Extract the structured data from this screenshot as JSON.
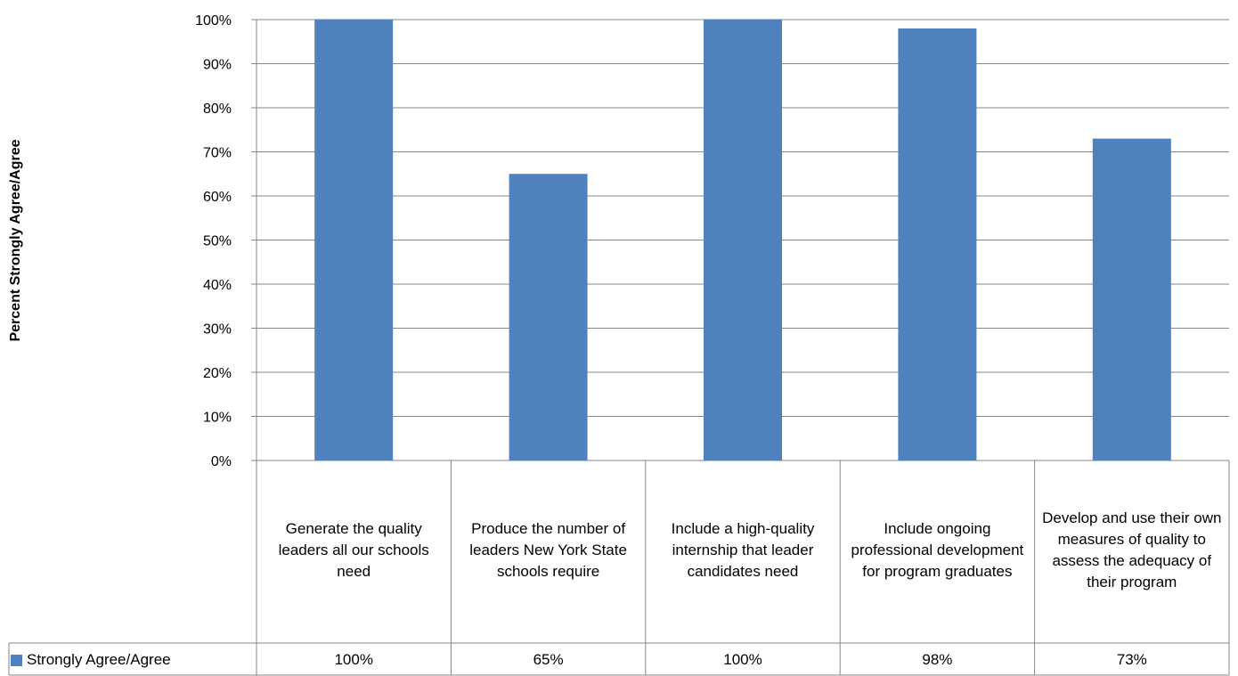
{
  "chart_data": {
    "type": "bar",
    "ylabel": "Percent Strongly Agree/Agree",
    "ylim": [
      0,
      100
    ],
    "y_ticks": [
      "0%",
      "10%",
      "20%",
      "30%",
      "40%",
      "50%",
      "60%",
      "70%",
      "80%",
      "90%",
      "100%"
    ],
    "grid": true,
    "legend_placement": "bottom-left (data table)",
    "categories": [
      "Generate the quality leaders all our schools need",
      "Produce the number of leaders New York State schools require",
      "Include a high-quality internship that leader candidates need",
      "Include ongoing professional development for program graduates",
      "Develop and use their own measures of quality to assess the adequacy of their program"
    ],
    "series": [
      {
        "name": "Strongly Agree/Agree",
        "values": [
          100,
          65,
          100,
          98,
          73
        ],
        "value_labels": [
          "100%",
          "65%",
          "100%",
          "98%",
          "73%"
        ],
        "color": "#4f81bd"
      }
    ]
  }
}
